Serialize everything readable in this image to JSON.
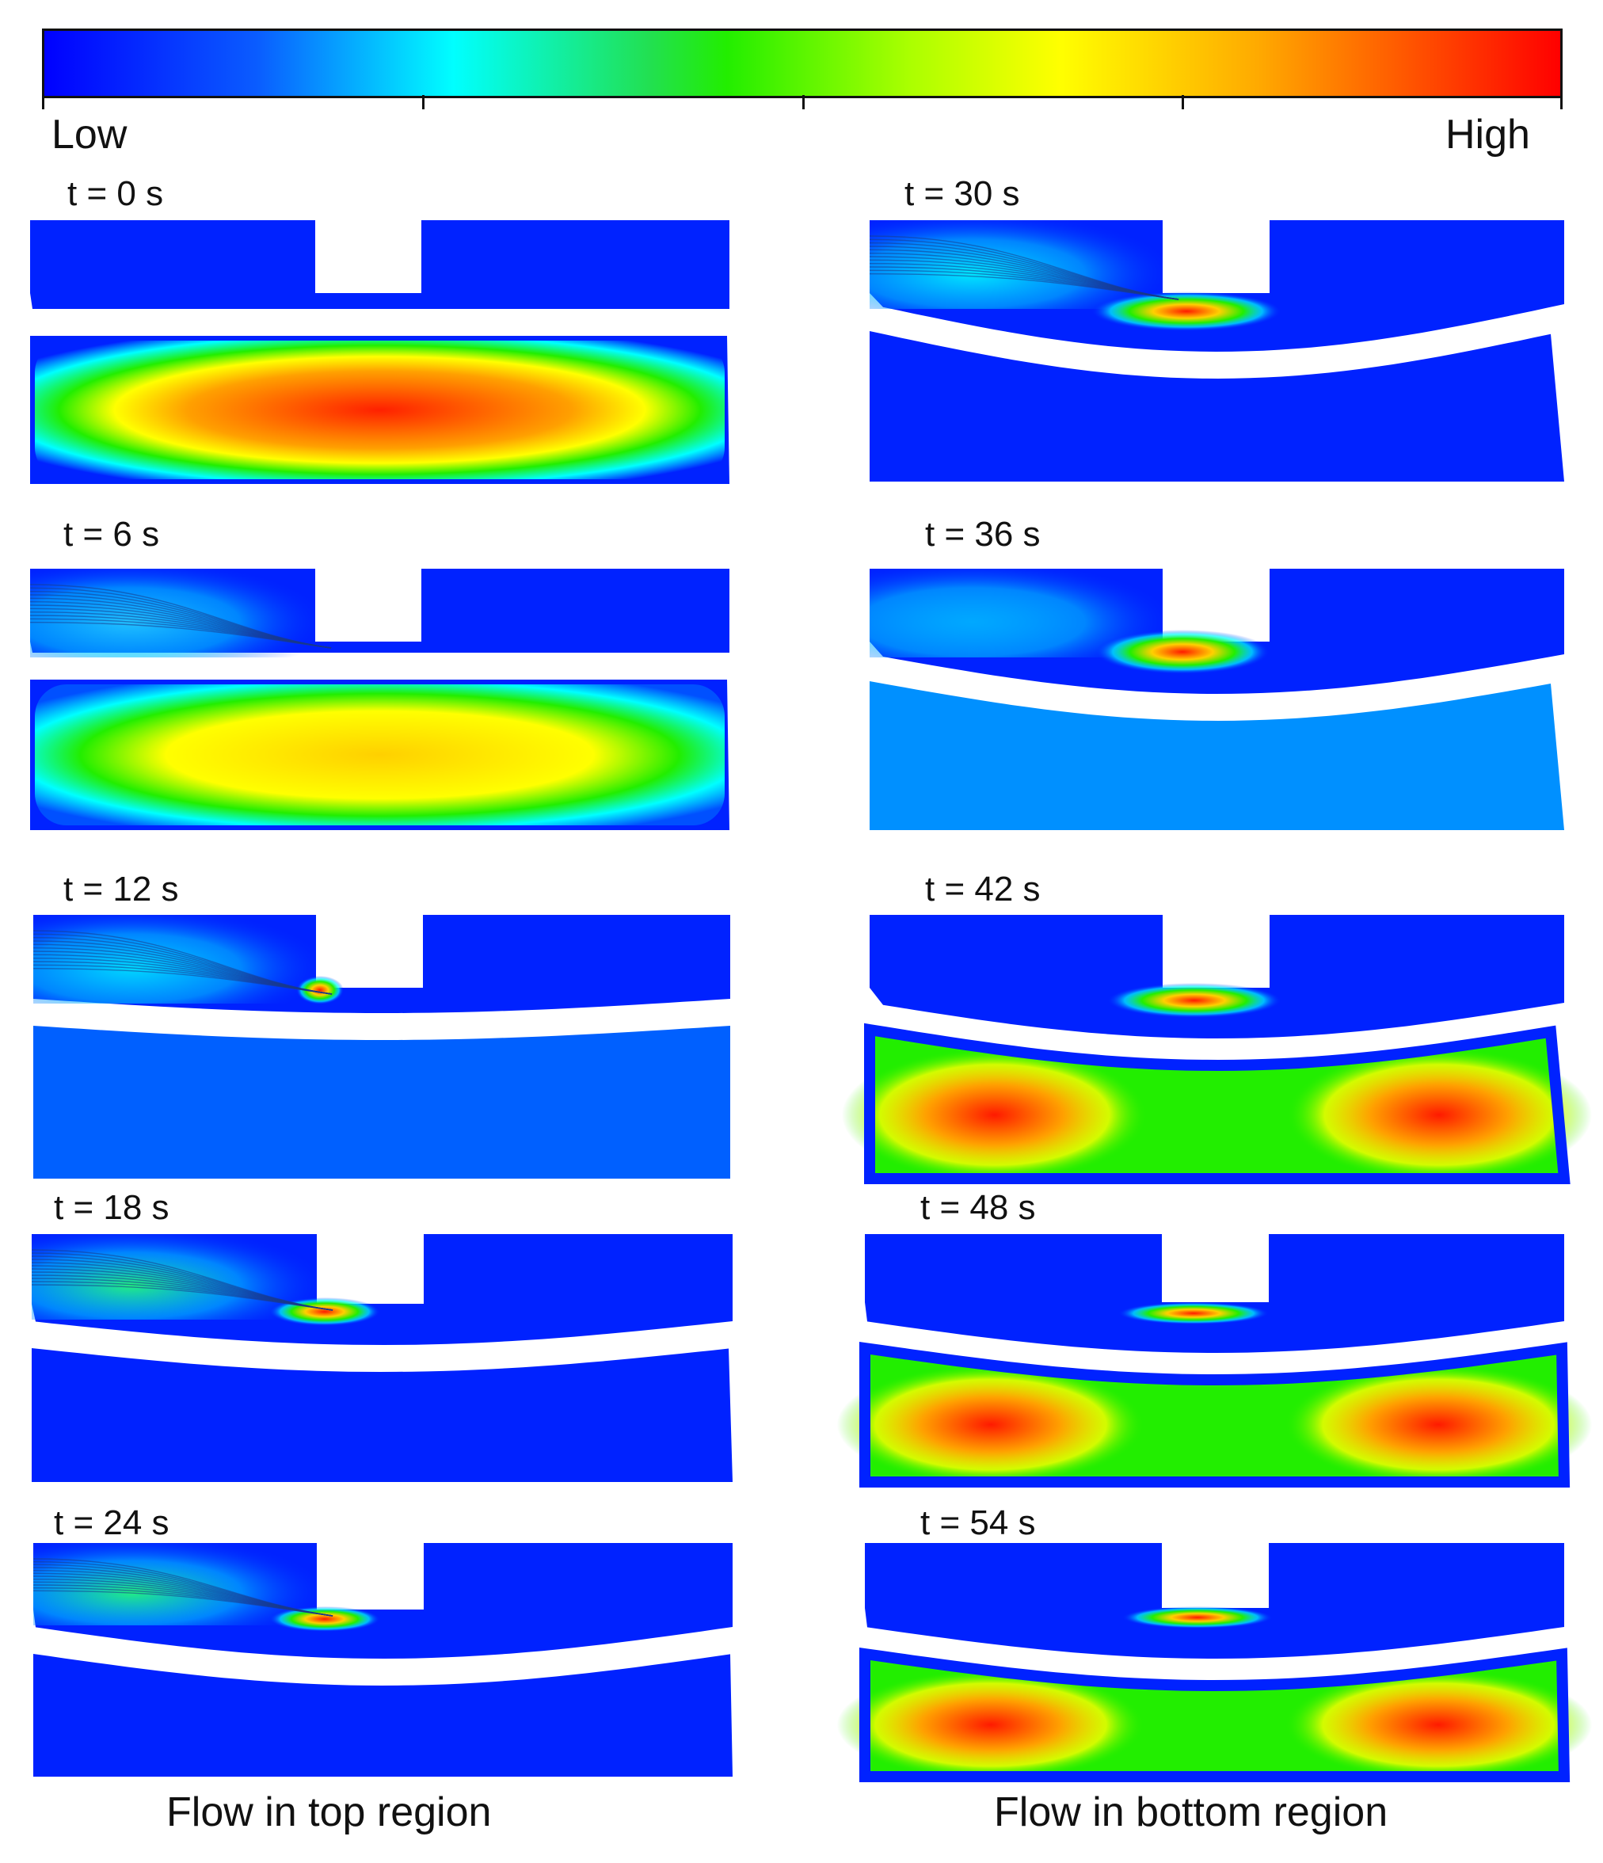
{
  "colorbar": {
    "low_label": "Low",
    "high_label": "High",
    "colors": [
      "#0000ff",
      "#00ffff",
      "#22ee00",
      "#ffff00",
      "#ff0000"
    ]
  },
  "panels": [
    {
      "id": "top-0",
      "label": "t = 0 s"
    },
    {
      "id": "top-6",
      "label": "t = 6 s"
    },
    {
      "id": "top-12",
      "label": "t = 12 s"
    },
    {
      "id": "top-18",
      "label": "t = 18 s"
    },
    {
      "id": "top-24",
      "label": "t = 24 s"
    },
    {
      "id": "bot-30",
      "label": "t = 30 s"
    },
    {
      "id": "bot-36",
      "label": "t = 36 s"
    },
    {
      "id": "bot-42",
      "label": "t = 42 s"
    },
    {
      "id": "bot-48",
      "label": "t = 48 s"
    },
    {
      "id": "bot-54",
      "label": "t = 54 s"
    }
  ],
  "captions": {
    "left": "Flow in top region",
    "right": "Flow in bottom region"
  }
}
